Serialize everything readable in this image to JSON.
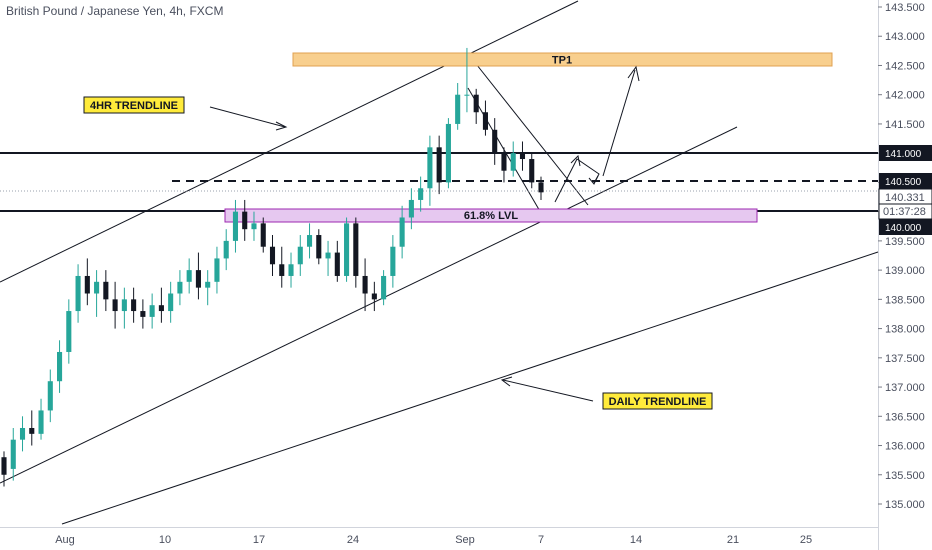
{
  "chart_data": {
    "type": "candlestick",
    "title": "British Pound / Japanese Yen, 4h, FXCM",
    "ylim": [
      134.7,
      143.6
    ],
    "y_ticks": [
      "143.500",
      "143.000",
      "142.500",
      "142.000",
      "141.500",
      "141.000",
      "140.500",
      "140.000",
      "139.500",
      "139.000",
      "138.500",
      "138.000",
      "137.500",
      "137.000",
      "136.500",
      "136.000",
      "135.500",
      "135.000"
    ],
    "x_ticks": [
      "Aug",
      "10",
      "17",
      "24",
      "Sep",
      "7",
      "14",
      "21",
      "25"
    ],
    "price_badges": {
      "level_141": "141.000",
      "level_1405": "140.500",
      "last_price": "140.331",
      "countdown": "01:37:28",
      "level_140": "140.000"
    },
    "annotations": {
      "tp1": "TP1",
      "fib": "61.8% LVL",
      "trend4h": "4HR TRENDLINE",
      "trendDaily": "DAILY TRENDLINE"
    },
    "colors": {
      "up": "#26a69a",
      "down": "#131722",
      "tp_fill": "#f8cf8e",
      "fib_fill": "#e6c8f0",
      "label_fill": "#ffeb3b",
      "badge_bg": "#131722"
    },
    "candles": [
      [
        135.8,
        135.9,
        135.3,
        135.5
      ],
      [
        135.6,
        136.3,
        135.4,
        136.1
      ],
      [
        136.1,
        136.5,
        135.9,
        136.3
      ],
      [
        136.3,
        136.6,
        136.0,
        136.2
      ],
      [
        136.2,
        136.8,
        136.1,
        136.6
      ],
      [
        136.6,
        137.3,
        136.4,
        137.1
      ],
      [
        137.1,
        137.8,
        136.9,
        137.6
      ],
      [
        137.6,
        138.5,
        137.4,
        138.3
      ],
      [
        138.3,
        139.1,
        138.1,
        138.9
      ],
      [
        138.9,
        139.2,
        138.4,
        138.6
      ],
      [
        138.6,
        139.0,
        138.2,
        138.8
      ],
      [
        138.8,
        139.0,
        138.3,
        138.5
      ],
      [
        138.5,
        138.8,
        138.0,
        138.3
      ],
      [
        138.3,
        138.7,
        138.0,
        138.5
      ],
      [
        138.5,
        138.7,
        138.1,
        138.3
      ],
      [
        138.3,
        138.5,
        138.0,
        138.2
      ],
      [
        138.2,
        138.6,
        138.0,
        138.4
      ],
      [
        138.4,
        138.7,
        138.1,
        138.3
      ],
      [
        138.3,
        138.8,
        138.1,
        138.6
      ],
      [
        138.6,
        139.0,
        138.4,
        138.8
      ],
      [
        138.8,
        139.2,
        138.6,
        139.0
      ],
      [
        139.0,
        139.3,
        138.5,
        138.7
      ],
      [
        138.7,
        139.0,
        138.4,
        138.8
      ],
      [
        138.8,
        139.4,
        138.6,
        139.2
      ],
      [
        139.2,
        139.7,
        139.0,
        139.5
      ],
      [
        139.5,
        140.2,
        139.3,
        140.0
      ],
      [
        140.0,
        140.2,
        139.5,
        139.7
      ],
      [
        139.7,
        140.0,
        139.5,
        139.8
      ],
      [
        139.8,
        139.9,
        139.3,
        139.4
      ],
      [
        139.4,
        139.6,
        138.9,
        139.1
      ],
      [
        139.1,
        139.4,
        138.7,
        138.9
      ],
      [
        138.9,
        139.3,
        138.7,
        139.1
      ],
      [
        139.1,
        139.6,
        138.9,
        139.4
      ],
      [
        139.4,
        139.8,
        139.2,
        139.6
      ],
      [
        139.6,
        139.7,
        139.1,
        139.2
      ],
      [
        139.2,
        139.5,
        138.9,
        139.3
      ],
      [
        139.3,
        139.5,
        138.8,
        138.9
      ],
      [
        138.9,
        139.9,
        138.8,
        139.8
      ],
      [
        139.8,
        139.9,
        138.7,
        138.9
      ],
      [
        138.9,
        139.2,
        138.3,
        138.6
      ],
      [
        138.6,
        138.8,
        138.3,
        138.5
      ],
      [
        138.5,
        139.0,
        138.4,
        138.9
      ],
      [
        138.9,
        139.6,
        138.7,
        139.4
      ],
      [
        139.4,
        140.1,
        139.2,
        139.9
      ],
      [
        139.9,
        140.4,
        139.7,
        140.2
      ],
      [
        140.2,
        140.6,
        140.0,
        140.4
      ],
      [
        140.4,
        141.3,
        140.1,
        141.1
      ],
      [
        141.1,
        141.3,
        140.3,
        140.5
      ],
      [
        140.5,
        141.6,
        140.4,
        141.5
      ],
      [
        141.5,
        142.2,
        141.4,
        142.0
      ],
      [
        142.0,
        142.8,
        141.7,
        142.0
      ],
      [
        142.0,
        142.1,
        141.5,
        141.7
      ],
      [
        141.7,
        141.9,
        141.3,
        141.4
      ],
      [
        141.4,
        141.6,
        140.8,
        141.0
      ],
      [
        141.0,
        141.1,
        140.5,
        140.7
      ],
      [
        140.7,
        141.2,
        140.6,
        141.0
      ],
      [
        141.0,
        141.2,
        140.7,
        140.9
      ],
      [
        140.9,
        141.0,
        140.4,
        140.5
      ],
      [
        140.5,
        140.6,
        140.2,
        140.33
      ]
    ]
  }
}
